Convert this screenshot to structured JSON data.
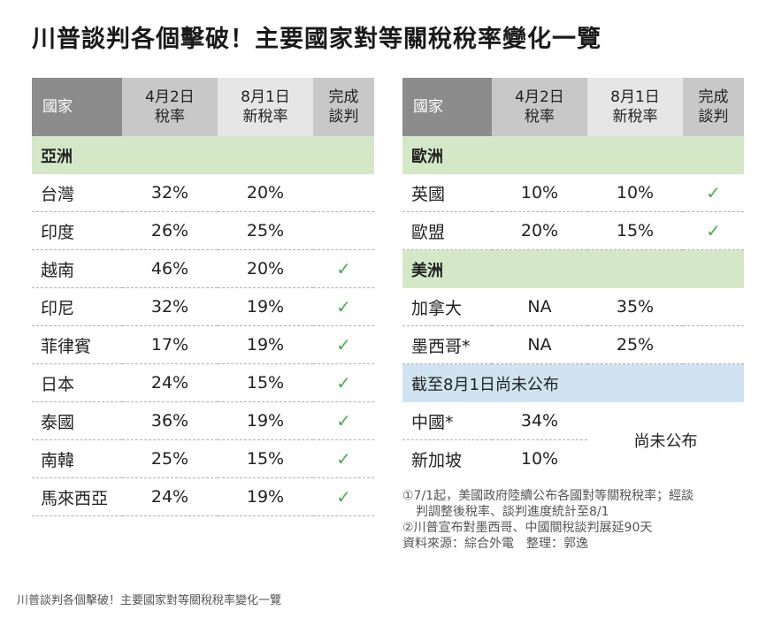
{
  "title": "川普談判各個擊破！主要國家對等關稅稅率變化一覽",
  "headers": {
    "country": "國家",
    "rate_0402_line1": "4月2日",
    "rate_0402_line2": "稅率",
    "rate_0801_line1": "8月1日",
    "rate_0801_line2": "新稅率",
    "done_line1": "完成",
    "done_line2": "談判"
  },
  "check_mark": "✓",
  "left": {
    "region": "亞洲",
    "rows": [
      {
        "country": "台灣",
        "apr2": "32%",
        "aug1": "20%",
        "done": ""
      },
      {
        "country": "印度",
        "apr2": "26%",
        "aug1": "25%",
        "done": ""
      },
      {
        "country": "越南",
        "apr2": "46%",
        "aug1": "20%",
        "done": "✓"
      },
      {
        "country": "印尼",
        "apr2": "32%",
        "aug1": "19%",
        "done": "✓"
      },
      {
        "country": "菲律賓",
        "apr2": "17%",
        "aug1": "19%",
        "done": "✓"
      },
      {
        "country": "日本",
        "apr2": "24%",
        "aug1": "15%",
        "done": "✓"
      },
      {
        "country": "泰國",
        "apr2": "36%",
        "aug1": "19%",
        "done": "✓"
      },
      {
        "country": "南韓",
        "apr2": "25%",
        "aug1": "15%",
        "done": "✓"
      },
      {
        "country": "馬來西亞",
        "apr2": "24%",
        "aug1": "19%",
        "done": "✓"
      }
    ]
  },
  "right": {
    "region_europe": "歐洲",
    "europe_rows": [
      {
        "country": "英國",
        "apr2": "10%",
        "aug1": "10%",
        "done": "✓"
      },
      {
        "country": "歐盟",
        "apr2": "20%",
        "aug1": "15%",
        "done": "✓"
      }
    ],
    "region_americas": "美洲",
    "americas_rows": [
      {
        "country": "加拿大",
        "apr2": "NA",
        "aug1": "35%",
        "done": ""
      },
      {
        "country": "墨西哥*",
        "apr2": "NA",
        "aug1": "25%",
        "done": ""
      }
    ],
    "region_pending": "截至8月1日尚未公布",
    "pending_rows": [
      {
        "country": "中國*",
        "apr2": "34%"
      },
      {
        "country": "新加坡",
        "apr2": "10%"
      }
    ],
    "pending_note": "尚未公布"
  },
  "notes": {
    "line1": "①7/1起，美國政府陸續公布各國對等關稅稅率；經談",
    "line2": "判調整後稅率、談判進度統計至8/1",
    "line3": "②川普宣布對墨西哥、中國關稅談判展延90天",
    "line4": "資料來源：綜合外電　整理：郭逸"
  },
  "caption": "川普談判各個擊破！主要國家對等關稅稅率變化一覽",
  "colors": {
    "header_dark": "#8c8c8c",
    "header_mid": "#c8c8c8",
    "header_light": "#e6e6e6",
    "region_green": "#d4e8c8",
    "region_blue": "#cfe3f0",
    "check_green": "#4caf50"
  }
}
